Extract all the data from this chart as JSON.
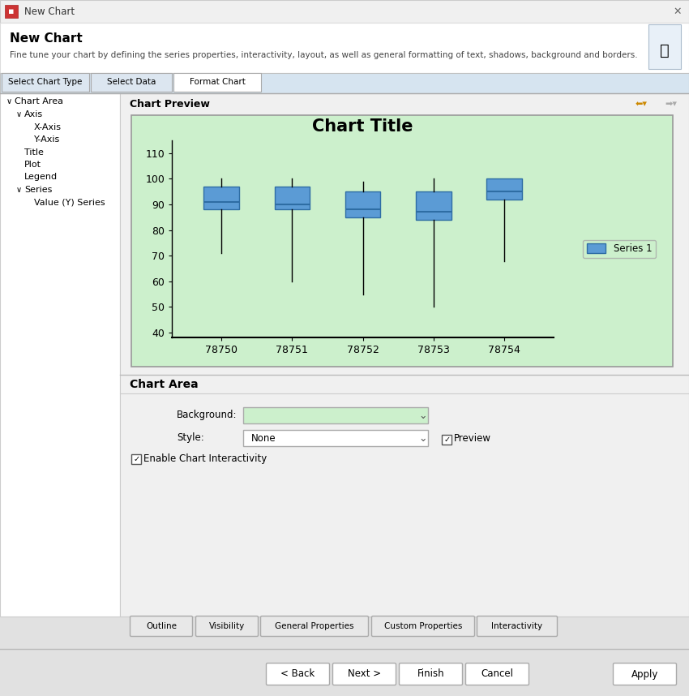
{
  "title": "Chart Title",
  "chart_bg": "#ccf0cc",
  "box_color": "#5b9bd5",
  "box_edge_color": "#2e6da4",
  "median_color": "#2e6da4",
  "categories": [
    "78750",
    "78751",
    "78752",
    "78753",
    "78754"
  ],
  "boxes": [
    {
      "q1": 88,
      "q3": 97,
      "med": 91,
      "whislo": 71,
      "whishi": 100
    },
    {
      "q1": 88,
      "q3": 97,
      "med": 90,
      "whislo": 60,
      "whishi": 100
    },
    {
      "q1": 85,
      "q3": 95,
      "med": 88,
      "whislo": 55,
      "whishi": 99
    },
    {
      "q1": 84,
      "q3": 95,
      "med": 87,
      "whislo": 50,
      "whishi": 100
    },
    {
      "q1": 92,
      "q3": 100,
      "med": 95,
      "whislo": 68,
      "whishi": 100
    }
  ],
  "ylim": [
    38,
    115
  ],
  "yticks": [
    40,
    50,
    60,
    70,
    80,
    90,
    100,
    110
  ],
  "legend_label": "Series 1",
  "window_title": "New Chart",
  "window_subtitle": "New Chart",
  "window_desc": "Fine tune your chart by defining the series properties, interactivity, layout, as well as general formatting of text, shadows, background and borders.",
  "tab_labels": [
    "Select Chart Type",
    "Select Data",
    "Format Chart"
  ],
  "section_title": "Chart Area",
  "bg_label": "Background:",
  "style_label": "Style:",
  "style_value": "None",
  "preview_label": "Preview",
  "enable_label": "Enable Chart Interactivity",
  "btn_labels": [
    "Outline",
    "Visibility",
    "General Properties",
    "Custom Properties",
    "Interactivity"
  ],
  "nav_labels": [
    "< Back",
    "Next >",
    "Finish",
    "Cancel",
    "Apply"
  ],
  "win_bg": "#e1e1e1",
  "left_panel_bg": "white",
  "right_panel_bg": "#f0f0f0",
  "header_bg": "white",
  "tab_active_bg": "white",
  "tab_inactive_bg": "#dce6f0",
  "tab_bar_bg": "#d6e4f0"
}
